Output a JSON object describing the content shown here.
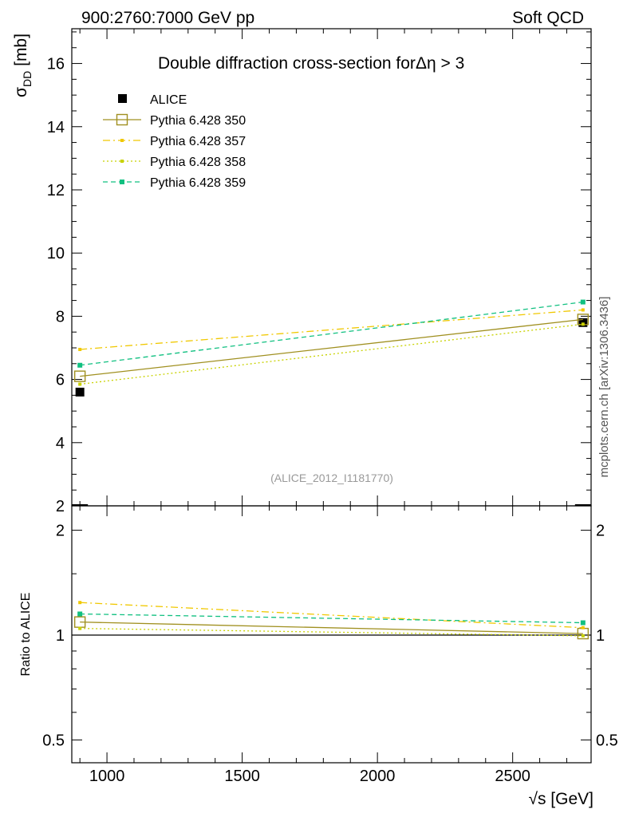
{
  "header": {
    "left": "900:2760:7000 GeV pp",
    "right": "Soft QCD"
  },
  "side_label": "mcplots.cern.ch [arXiv:1306.3436]",
  "chart_data": [
    {
      "type": "line",
      "title": "Double diffraction cross-section for",
      "title_suffix": "Δη > 3",
      "ylabel": "σ",
      "ylabel_sub": "DD",
      "ylabel_unit": "[mb]",
      "xlabel": "√s [GeV]",
      "watermark": "(ALICE_2012_I1181770)",
      "xlim": [
        870,
        2790
      ],
      "ylim": [
        2,
        17.1
      ],
      "yticks": [
        2,
        4,
        6,
        8,
        10,
        12,
        14,
        16
      ],
      "ytick_labels": [
        "2",
        "4",
        "6",
        "8",
        "10",
        "12",
        "14",
        "16"
      ],
      "x": [
        900,
        2760
      ],
      "series": [
        {
          "name": "ALICE",
          "values": [
            5.6,
            7.8
          ],
          "color": "#000000",
          "style": "data"
        },
        {
          "name": "Pythia 6.428 350",
          "values": [
            6.1,
            7.9
          ],
          "color": "#a09020",
          "style": "solid-open-square"
        },
        {
          "name": "Pythia 6.428 357",
          "values": [
            6.95,
            8.2
          ],
          "color": "#f0c800",
          "style": "dashdot"
        },
        {
          "name": "Pythia 6.428 358",
          "values": [
            5.85,
            7.75
          ],
          "color": "#c8d200",
          "style": "dotted"
        },
        {
          "name": "Pythia 6.428 359",
          "values": [
            6.45,
            8.45
          ],
          "color": "#10c080",
          "style": "dashed"
        }
      ]
    },
    {
      "type": "line",
      "ylabel": "Ratio to ALICE",
      "scale": "log",
      "xlim": [
        870,
        2790
      ],
      "ylim": [
        0.43,
        2.35
      ],
      "xticks": [
        1000,
        1500,
        2000,
        2500
      ],
      "xtick_labels": [
        "1000",
        "1500",
        "2000",
        "2500"
      ],
      "yticks": [
        0.5,
        1,
        2
      ],
      "ytick_labels": [
        "0.5",
        "1",
        "2"
      ],
      "x": [
        900,
        2760
      ],
      "series": [
        {
          "name": "Pythia 6.428 350",
          "values": [
            1.09,
            1.01
          ],
          "color": "#a09020"
        },
        {
          "name": "Pythia 6.428 357",
          "values": [
            1.24,
            1.05
          ],
          "color": "#f0c800"
        },
        {
          "name": "Pythia 6.428 358",
          "values": [
            1.045,
            0.995
          ],
          "color": "#c8d200"
        },
        {
          "name": "Pythia 6.428 359",
          "values": [
            1.15,
            1.085
          ],
          "color": "#10c080"
        }
      ]
    }
  ]
}
